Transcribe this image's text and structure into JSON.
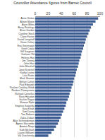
{
  "chart_data": {
    "type": "bar",
    "orientation": "horizontal",
    "title": "Councillor Attendance figures from Barnet Council",
    "categories": [
      "Anne Hutton",
      "Alison Moore",
      "Arjun Mittra",
      "Barry Rawlings",
      "Brian Gordon",
      "Caroline Stock",
      "Claire Farrier",
      "David Longstaff",
      "Dean Cohen",
      "Eva Greenspan",
      "Geof Cooke",
      "Gill Sargeant",
      "Graham Old",
      "Helena Hart",
      "Jim Tierney",
      "John Hart",
      "John Marshall",
      "Joan Scannell",
      "Kathy Levine",
      "Lisa Rutter",
      "Mark Shooter",
      "Melvin Cohen",
      "Paul Edwards",
      "Pauline Coakley Webb",
      "Reuben Thompstone",
      "Richard Cornelius",
      "Ross Houston",
      "Sachin Rajput",
      "Shimon Ryde",
      "Stephen Sowerby",
      "Sury Khatri",
      "Tom Davey",
      "Tim Roberts",
      "Zakia Zubairi",
      "Alan Schneiderman",
      "Agnes Slocombe",
      "Ammar Naqvi",
      "Kath McGuirk",
      "Laurie Williams",
      "Val Duschinsky"
    ],
    "values": [
      97,
      93,
      89,
      86,
      84,
      82,
      80,
      78,
      77,
      75,
      74,
      72,
      71,
      70,
      68,
      67,
      66,
      64,
      63,
      62,
      60,
      59,
      58,
      56,
      55,
      53,
      52,
      50,
      48,
      47,
      45,
      43,
      41,
      39,
      37,
      35,
      32,
      29,
      25,
      20
    ],
    "color": "#3b5b92",
    "xlim": [
      0,
      100
    ],
    "xticks": [
      0,
      20,
      40,
      60,
      80,
      100
    ],
    "grid": true
  }
}
